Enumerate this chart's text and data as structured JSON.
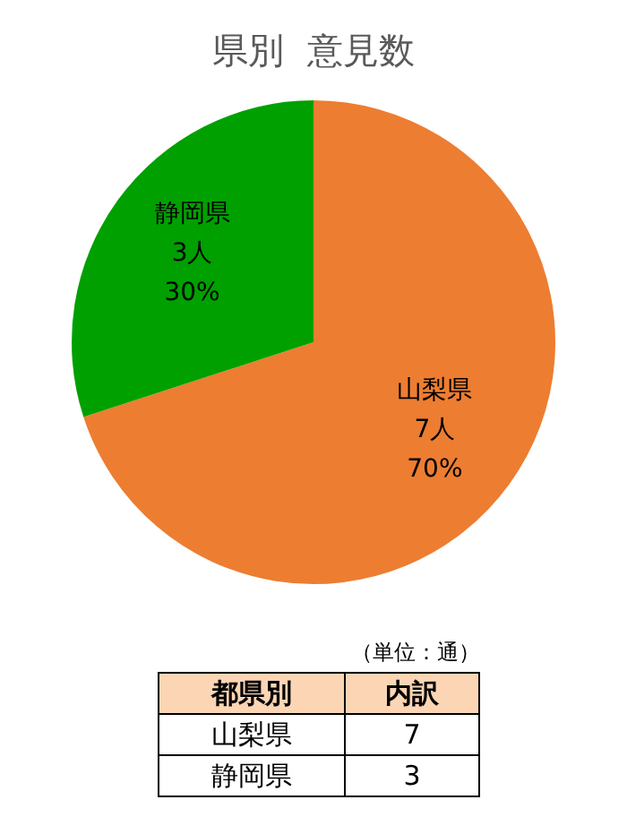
{
  "chart_data": {
    "type": "pie",
    "title": "県別  意見数",
    "categories": [
      "山梨県",
      "静岡県"
    ],
    "values": [
      7,
      3
    ],
    "colors": [
      "#ed7d31",
      "#00a000"
    ],
    "value_labels": [
      "7人\n70%",
      "3人\n30%"
    ],
    "legend": false,
    "annotations": [
      "（単位：通）",
      "都県別",
      "内訳",
      "7",
      "3"
    ]
  }
}
